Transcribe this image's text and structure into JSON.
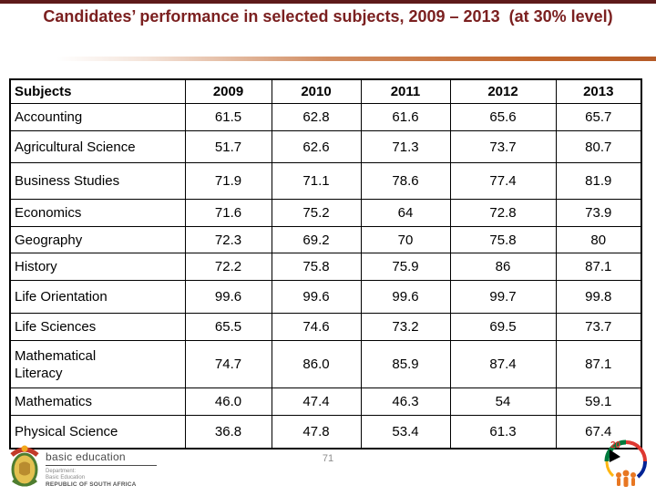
{
  "title": "Candidates’ performance in selected subjects, 2009 – 2013  (at 30% level)",
  "colors": {
    "title_maroon": "#7b2020",
    "top_bar_maroon": "#5e1a1a",
    "divider_orange": "#c2672e",
    "table_border": "#000000",
    "page_number_gray": "#8e8e8e"
  },
  "table": {
    "header": [
      "Subjects",
      "2009",
      "2010",
      "2011",
      "2012",
      "2013"
    ],
    "rows": [
      {
        "subject": "Accounting",
        "values": [
          "61.5",
          "62.8",
          "61.6",
          "65.6",
          "65.7"
        ]
      },
      {
        "subject": "Agricultural Science",
        "values": [
          "51.7",
          "62.6",
          "71.3",
          "73.7",
          "80.7"
        ]
      },
      {
        "subject": "Business Studies",
        "values": [
          "71.9",
          "71.1",
          "78.6",
          "77.4",
          "81.9"
        ]
      },
      {
        "subject": "Economics",
        "values": [
          "71.6",
          "75.2",
          "64",
          "72.8",
          "73.9"
        ]
      },
      {
        "subject": "Geography",
        "values": [
          "72.3",
          "69.2",
          "70",
          "75.8",
          "80"
        ]
      },
      {
        "subject": "History",
        "values": [
          "72.2",
          "75.8",
          "75.9",
          "86",
          "87.1"
        ]
      },
      {
        "subject": "Life Orientation",
        "values": [
          "99.6",
          "99.6",
          "99.6",
          "99.7",
          "99.8"
        ]
      },
      {
        "subject": "Life Sciences",
        "values": [
          "65.5",
          "74.6",
          "73.2",
          "69.5",
          "73.7"
        ]
      },
      {
        "subject": "Mathematical\nLiteracy",
        "values": [
          "74.7",
          "86.0",
          "85.9",
          "87.4",
          "87.1"
        ]
      },
      {
        "subject": "Mathematics",
        "values": [
          "46.0",
          "47.4",
          "46.3",
          "54",
          "59.1"
        ]
      },
      {
        "subject": "Physical Science",
        "values": [
          "36.8",
          "47.8",
          "53.4",
          "61.3",
          "67.4"
        ]
      }
    ]
  },
  "footer": {
    "page_number": "71",
    "department_logo": {
      "wordmark": "basic education",
      "line_department": "Department:",
      "line_basic_education": "Basic Education",
      "line_republic": "REPUBLIC OF SOUTH AFRICA"
    },
    "right_logo_name": "20-years-of-freedom-logo"
  }
}
